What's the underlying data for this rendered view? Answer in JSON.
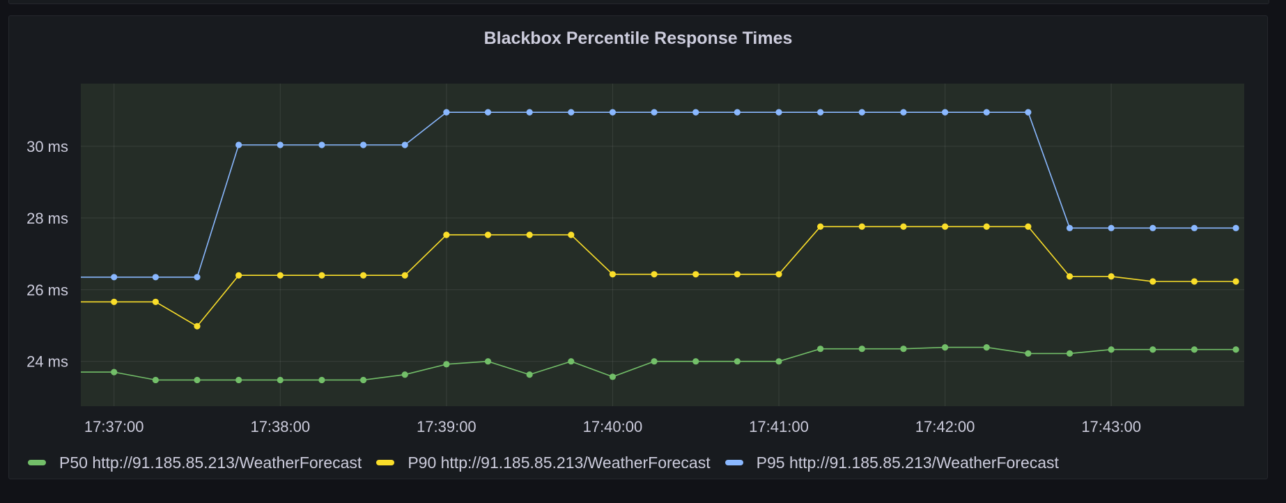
{
  "panel": {
    "title": "Blackbox Percentile Response Times"
  },
  "chart_data": {
    "type": "line",
    "title": "Blackbox Percentile Response Times",
    "y_unit": "ms",
    "ylim": [
      22.75,
      31.75
    ],
    "y_ticks": [
      24,
      26,
      28,
      30
    ],
    "y_tick_labels": [
      "24 ms",
      "26 ms",
      "28 ms",
      "30 ms"
    ],
    "xlim": [
      "17:36:48",
      "17:43:48"
    ],
    "x_ticks": [
      "17:37:00",
      "17:38:00",
      "17:39:00",
      "17:40:00",
      "17:41:00",
      "17:42:00",
      "17:43:00"
    ],
    "x": [
      "17:36:48",
      "17:37:00",
      "17:37:15",
      "17:37:30",
      "17:37:45",
      "17:38:00",
      "17:38:15",
      "17:38:30",
      "17:38:45",
      "17:39:00",
      "17:39:15",
      "17:39:30",
      "17:39:45",
      "17:40:00",
      "17:40:15",
      "17:40:30",
      "17:40:45",
      "17:41:00",
      "17:41:15",
      "17:41:30",
      "17:41:45",
      "17:42:00",
      "17:42:15",
      "17:42:30",
      "17:42:45",
      "17:43:00",
      "17:43:15",
      "17:43:30",
      "17:43:45"
    ],
    "series": [
      {
        "name": "P50 http://91.185.85.213/WeatherForecast",
        "color": "#73bf69",
        "values": [
          23.7,
          23.7,
          23.48,
          23.48,
          23.48,
          23.48,
          23.48,
          23.48,
          23.63,
          23.92,
          24.0,
          23.63,
          24.0,
          23.57,
          24.0,
          24.0,
          24.0,
          24.0,
          24.35,
          24.35,
          24.35,
          24.39,
          24.39,
          24.22,
          24.22,
          24.33,
          24.33,
          24.33,
          24.33
        ]
      },
      {
        "name": "P90 http://91.185.85.213/WeatherForecast",
        "color": "#fade2a",
        "values": [
          25.66,
          25.66,
          25.66,
          24.98,
          26.4,
          26.4,
          26.4,
          26.4,
          26.4,
          27.53,
          27.53,
          27.53,
          27.53,
          26.43,
          26.43,
          26.43,
          26.43,
          26.43,
          27.76,
          27.76,
          27.76,
          27.76,
          27.76,
          27.76,
          26.37,
          26.37,
          26.23,
          26.23,
          26.23
        ]
      },
      {
        "name": "P95 http://91.185.85.213/WeatherForecast",
        "color": "#8ab8ff",
        "values": [
          26.35,
          26.35,
          26.35,
          26.35,
          30.04,
          30.04,
          30.04,
          30.04,
          30.04,
          30.95,
          30.95,
          30.95,
          30.95,
          30.95,
          30.95,
          30.95,
          30.95,
          30.95,
          30.95,
          30.95,
          30.95,
          30.95,
          30.95,
          30.95,
          27.72,
          27.72,
          27.72,
          27.72,
          27.72
        ]
      }
    ],
    "grid": true,
    "legend_position": "bottom"
  },
  "legend": {
    "items": [
      {
        "label": "P50 http://91.185.85.213/WeatherForecast",
        "color": "#73bf69"
      },
      {
        "label": "P90 http://91.185.85.213/WeatherForecast",
        "color": "#fade2a"
      },
      {
        "label": "P95 http://91.185.85.213/WeatherForecast",
        "color": "#8ab8ff"
      }
    ]
  }
}
